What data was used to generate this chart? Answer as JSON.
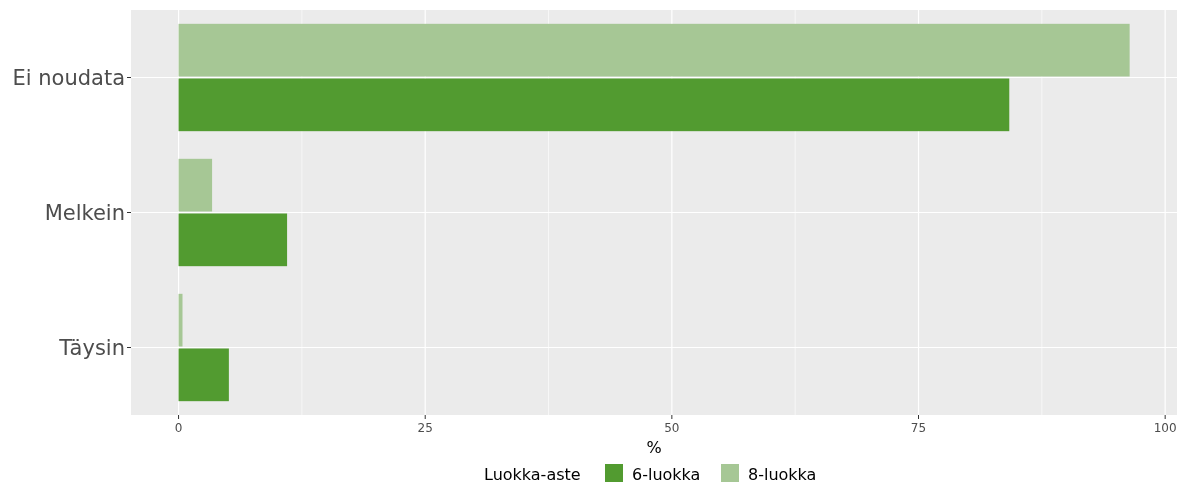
{
  "chart_data": {
    "type": "bar",
    "orientation": "horizontal",
    "xlabel": "%",
    "legend_title": "Luokka-aste",
    "categories": [
      "Ei noudata",
      "Melkein",
      "Täysin"
    ],
    "series": [
      {
        "name": "6-luokka",
        "color": "#529b30",
        "values": [
          84.2,
          11.0,
          5.1
        ]
      },
      {
        "name": "8-luokka",
        "color": "#a6c795",
        "values": [
          96.4,
          3.4,
          0.4
        ]
      }
    ],
    "xlim": [
      -4.82,
      101.2
    ],
    "xticks": [
      0,
      25,
      50,
      75,
      100
    ],
    "grid": true,
    "legend": "bottom"
  }
}
